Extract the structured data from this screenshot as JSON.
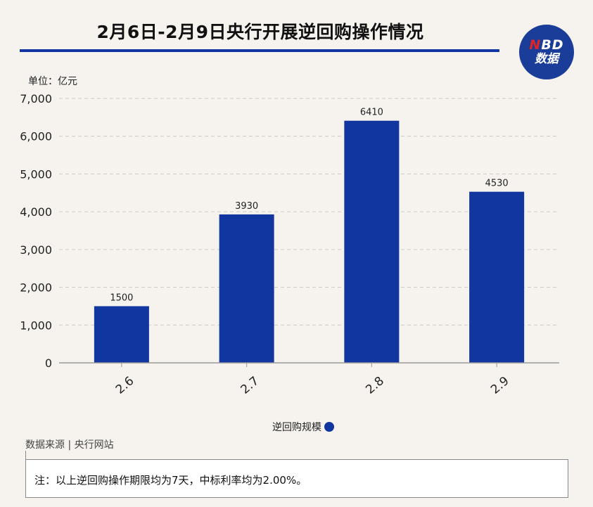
{
  "title": "2月6日-2月9日央行开展逆回购操作情况",
  "logo": {
    "line1_n": "N",
    "line1_rest": "BD",
    "line2": "数据"
  },
  "unit_label": "单位：亿元",
  "legend_label": "逆回购规模",
  "source": "数据来源 | 央行网站",
  "note": "注：以上逆回购操作期限均为7天，中标利率均为2.00%。",
  "colors": {
    "bar": "#1236a0",
    "title_rule": "#1236a0"
  },
  "chart_data": {
    "type": "bar",
    "categories": [
      "2.6",
      "2.7",
      "2.8",
      "2.9"
    ],
    "series": [
      {
        "name": "逆回购规模",
        "values": [
          1500,
          3930,
          6410,
          4530
        ]
      }
    ],
    "data_labels": [
      "1500",
      "3930",
      "6410",
      "4530"
    ],
    "ylabel": "单位：亿元",
    "ylim": [
      0,
      7000
    ],
    "yticks": [
      0,
      1000,
      2000,
      3000,
      4000,
      5000,
      6000,
      7000
    ],
    "ytick_labels": [
      "0",
      "1,000",
      "2,000",
      "3,000",
      "4,000",
      "5,000",
      "6,000",
      "7,000"
    ],
    "grid": true,
    "legend_position": "bottom-center"
  }
}
